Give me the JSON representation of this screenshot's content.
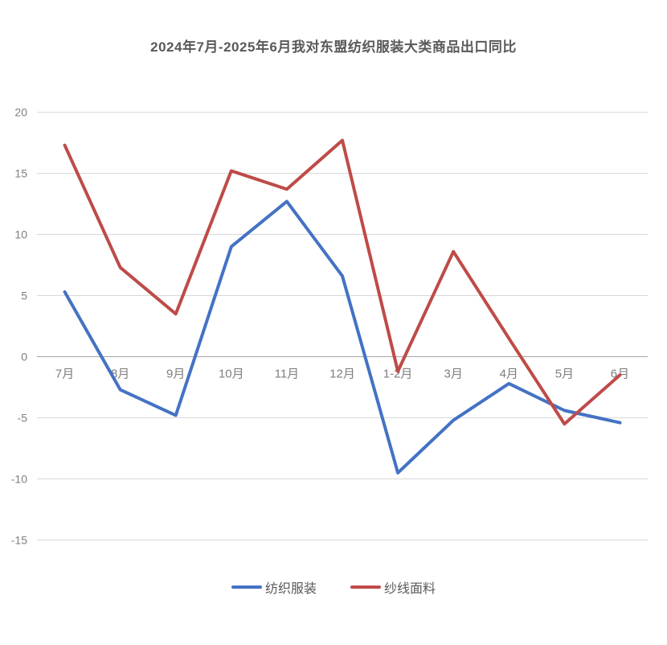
{
  "chart_data": {
    "type": "line",
    "title": "2024年7月-2025年6月我对东盟纺织服装大类商品出口同比",
    "categories": [
      "7月",
      "8月",
      "9月",
      "10月",
      "11月",
      "12月",
      "1-2月",
      "3月",
      "4月",
      "5月",
      "6月"
    ],
    "series": [
      {
        "name": "纺织服装",
        "color": "#4472C4",
        "values": [
          5.3,
          -2.7,
          -4.8,
          9.0,
          12.7,
          6.6,
          -9.5,
          -5.2,
          -2.2,
          -4.4,
          -5.4
        ]
      },
      {
        "name": "纱线面料",
        "color": "#BE4B48",
        "values": [
          17.3,
          7.3,
          3.5,
          15.2,
          13.7,
          17.7,
          -1.2,
          8.6,
          1.5,
          -5.5,
          -1.5
        ]
      }
    ],
    "ylim": [
      -15,
      20
    ],
    "yticks": [
      20,
      15,
      10,
      5,
      0,
      -5,
      -10,
      -15
    ],
    "grid": true,
    "legend_position": "bottom",
    "styles": {
      "gridline_color": "#D9D9D9",
      "axis_line_color": "#A6A6A6",
      "tick_label_color": "#7F7F7F",
      "title_color": "#595959",
      "legend_text_color": "#595959",
      "line_width": 4
    }
  }
}
